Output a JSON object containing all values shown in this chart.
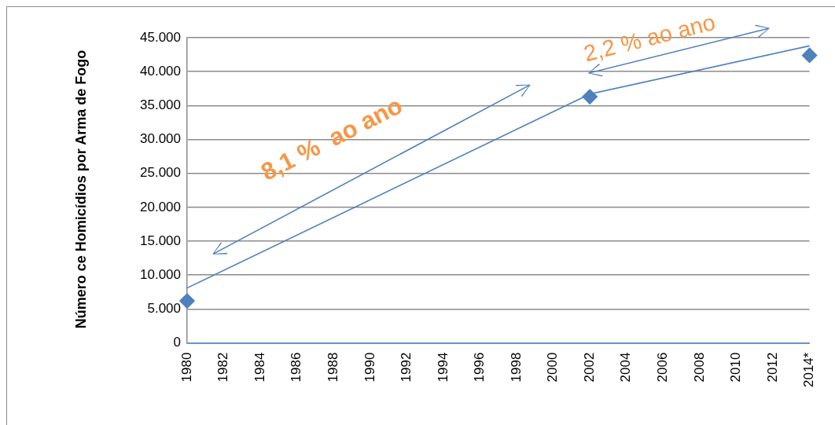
{
  "chart_data": {
    "type": "scatter",
    "ylabel": "Número ce Homicídios por Arma de Fogo",
    "categories": [
      "1980",
      "1982",
      "1984",
      "1986",
      "1988",
      "1990",
      "1992",
      "1994",
      "1996",
      "1998",
      "2000",
      "2002",
      "2004",
      "2006",
      "2008",
      "2010",
      "2012",
      "2014*"
    ],
    "series": [
      {
        "color": "#4f81bd",
        "values": [
          6200,
          null,
          null,
          null,
          null,
          null,
          null,
          null,
          null,
          null,
          null,
          36300,
          null,
          null,
          null,
          null,
          null,
          42400
        ]
      },
      {
        "type": "line",
        "marker": "none",
        "color": "#4f81bd",
        "values": [
          8100,
          null,
          null,
          null,
          null,
          null,
          null,
          null,
          null,
          null,
          null,
          36700,
          null,
          null,
          null,
          null,
          null,
          43800
        ]
      }
    ],
    "ylim": [
      0,
      45000
    ],
    "yticks": [
      {
        "value": 0,
        "label": "0"
      },
      {
        "value": 5000,
        "label": "5.000"
      },
      {
        "value": 10000,
        "label": "10.000"
      },
      {
        "value": 15000,
        "label": "15.000"
      },
      {
        "value": 20000,
        "label": "20.000"
      },
      {
        "value": 25000,
        "label": "25.000"
      },
      {
        "value": 30000,
        "label": "30.000"
      },
      {
        "value": 35000,
        "label": "35.000"
      },
      {
        "value": 40000,
        "label": "40.000"
      },
      {
        "value": 45000,
        "label": "45.000"
      }
    ],
    "grid": "y",
    "marker": "diamond",
    "annotations": [
      "8,1 %  ao ano",
      "2,2 % ao ano"
    ]
  }
}
